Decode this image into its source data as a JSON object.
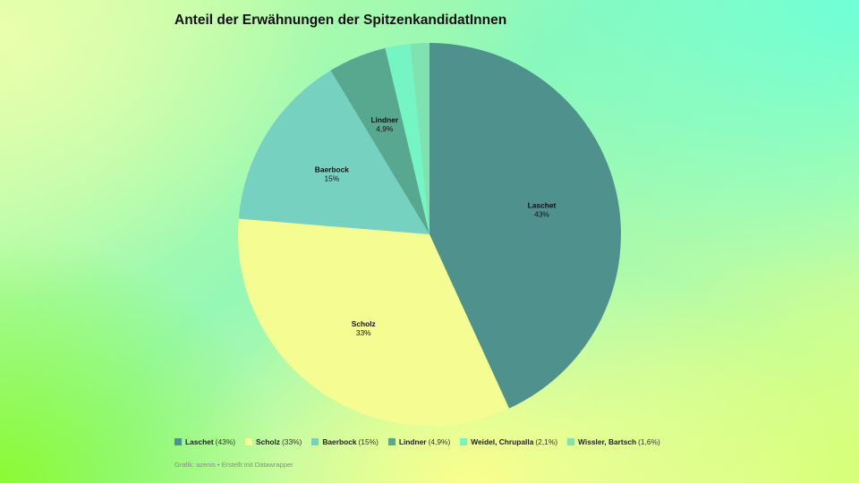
{
  "title": "Anteil der Erwähnungen der SpitzenkandidatInnen",
  "credit": "Grafik: azenis • Erstellt mit Datawrapper",
  "chart_data": {
    "type": "pie",
    "title": "Anteil der Erwähnungen der SpitzenkandidatInnen",
    "slices": [
      {
        "name": "Laschet",
        "value": 43,
        "label": "43%",
        "legend_pct": "(43%)",
        "color": "#4f918c",
        "show_label": true
      },
      {
        "name": "Scholz",
        "value": 33,
        "label": "33%",
        "legend_pct": "(33%)",
        "color": "#f5fd92",
        "show_label": true
      },
      {
        "name": "Baerbock",
        "value": 15,
        "label": "15%",
        "legend_pct": "(15%)",
        "color": "#76d1c1",
        "show_label": true
      },
      {
        "name": "Lindner",
        "value": 4.9,
        "label": "4,9%",
        "legend_pct": "(4,9%)",
        "color": "#57a88f",
        "show_label": true
      },
      {
        "name": "Weidel, Chrupalla",
        "value": 2.1,
        "label": "2,1%",
        "legend_pct": "(2,1%)",
        "color": "#74f5c3",
        "show_label": false
      },
      {
        "name": "Wissler, Bartsch",
        "value": 1.6,
        "label": "1,6%",
        "legend_pct": "(1,6%)",
        "color": "#7ee3b0",
        "show_label": false
      }
    ],
    "legend_position": "bottom-left"
  }
}
